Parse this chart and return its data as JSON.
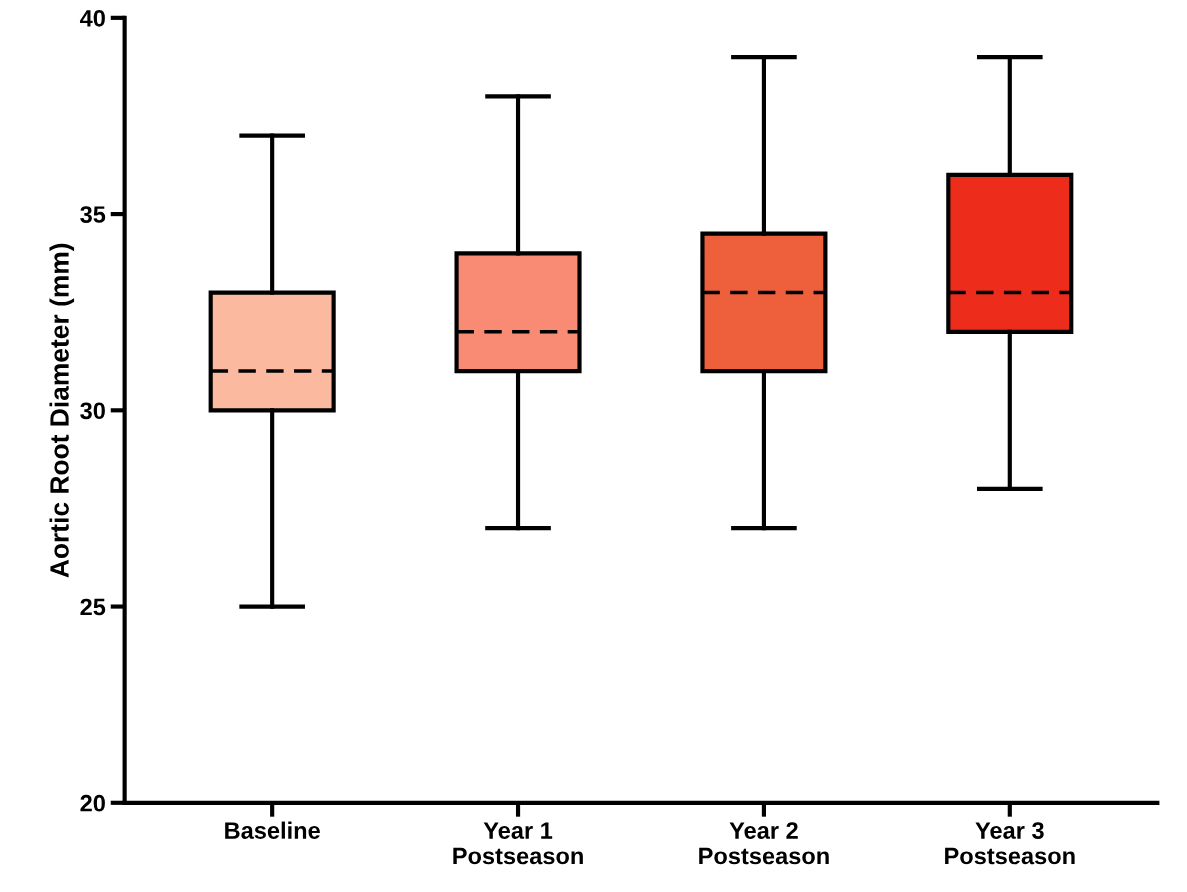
{
  "chart_data": {
    "type": "box",
    "ylabel": "Aortic Root Diameter (mm)",
    "categories": [
      "Baseline",
      "Year 1\nPostseason",
      "Year 2\nPostseason",
      "Year 3\nPostseason"
    ],
    "boxes": [
      {
        "low": 25,
        "q1": 30,
        "median": 31,
        "q3": 33,
        "high": 37
      },
      {
        "low": 27,
        "q1": 31,
        "median": 32,
        "q3": 34,
        "high": 38
      },
      {
        "low": 27,
        "q1": 31,
        "median": 33,
        "q3": 34.5,
        "high": 39
      },
      {
        "low": 28,
        "q1": 32,
        "median": 33,
        "q3": 36,
        "high": 39
      }
    ],
    "colors": [
      "#fbb9a0",
      "#f98a74",
      "#ee5f3c",
      "#ee2c1c"
    ],
    "ylim": [
      20,
      40
    ],
    "yticks": [
      20,
      25,
      30,
      35,
      40
    ],
    "grid": false,
    "legend": false
  }
}
